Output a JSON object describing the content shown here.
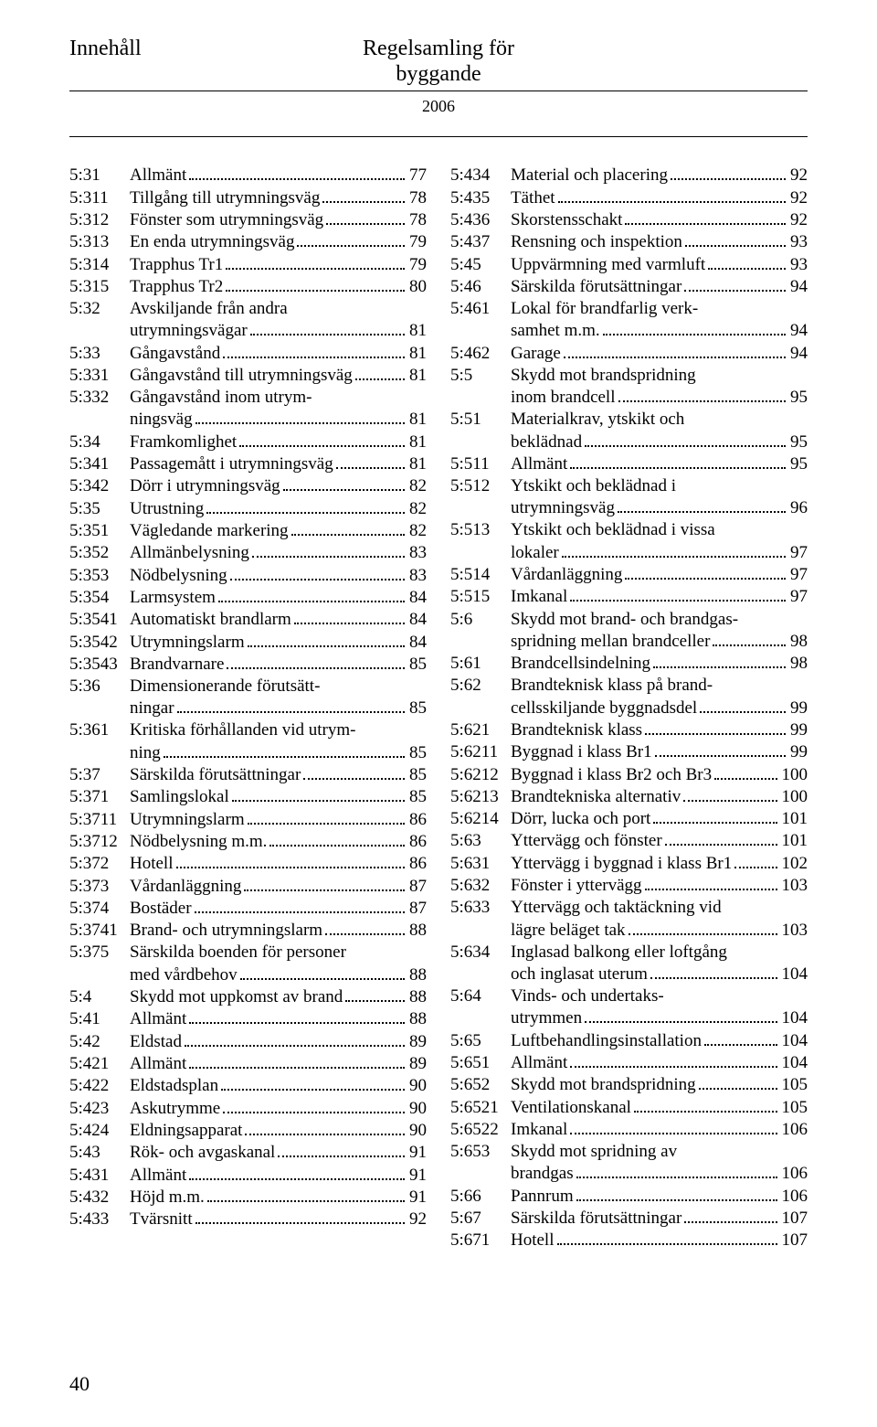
{
  "header": {
    "left": "Innehåll",
    "title_line1": "Regelsamling för",
    "title_line2": "byggande",
    "year": "2006"
  },
  "page_number": "40",
  "left": [
    {
      "code": "5:31",
      "label": "Allmänt",
      "page": "77"
    },
    {
      "code": "5:311",
      "label": "Tillgång till utrymningsväg",
      "page": "78"
    },
    {
      "code": "5:312",
      "label": "Fönster som utrymningsväg",
      "page": "78"
    },
    {
      "code": "5:313",
      "label": "En enda utrymningsväg",
      "page": "79"
    },
    {
      "code": "5:314",
      "label": "Trapphus Tr1",
      "page": "79"
    },
    {
      "code": "5:315",
      "label": "Trapphus Tr2",
      "page": "80"
    },
    {
      "code": "5:32",
      "label": "Avskiljande från andra",
      "cont": "utrymningsvägar",
      "page": "81"
    },
    {
      "code": "5:33",
      "label": "Gångavstånd",
      "page": "81"
    },
    {
      "code": "5:331",
      "label": "Gångavstånd till utrymningsväg",
      "page": "81"
    },
    {
      "code": "5:332",
      "label": "Gångavstånd inom utrym-",
      "cont": "ningsväg",
      "page": "81"
    },
    {
      "code": "5:34",
      "label": "Framkomlighet",
      "page": "81"
    },
    {
      "code": "5:341",
      "label": "Passagemått i utrymningsväg",
      "page": "81"
    },
    {
      "code": "5:342",
      "label": "Dörr i utrymningsväg",
      "page": "82"
    },
    {
      "code": "5:35",
      "label": "Utrustning",
      "page": "82"
    },
    {
      "code": "5:351",
      "label": "Vägledande markering",
      "page": "82"
    },
    {
      "code": "5:352",
      "label": "Allmänbelysning",
      "page": "83"
    },
    {
      "code": "5:353",
      "label": "Nödbelysning",
      "page": "83"
    },
    {
      "code": "5:354",
      "label": "Larmsystem",
      "page": "84"
    },
    {
      "code": "5:3541",
      "label": "Automatiskt brandlarm",
      "page": "84"
    },
    {
      "code": "5:3542",
      "label": "Utrymningslarm",
      "page": "84"
    },
    {
      "code": "5:3543",
      "label": "Brandvarnare",
      "page": "85"
    },
    {
      "code": "5:36",
      "label": "Dimensionerande förutsätt-",
      "cont": "ningar",
      "page": "85"
    },
    {
      "code": "5:361",
      "label": "Kritiska förhållanden vid utrym-",
      "cont": "ning",
      "page": "85"
    },
    {
      "code": "5:37",
      "label": "Särskilda förutsättningar",
      "page": "85"
    },
    {
      "code": "5:371",
      "label": "Samlingslokal",
      "page": "85"
    },
    {
      "code": "5:3711",
      "label": "Utrymningslarm",
      "page": "86"
    },
    {
      "code": "5:3712",
      "label": "Nödbelysning m.m.",
      "page": "86"
    },
    {
      "code": "5:372",
      "label": "Hotell",
      "page": "86"
    },
    {
      "code": "5:373",
      "label": "Vårdanläggning",
      "page": "87"
    },
    {
      "code": "5:374",
      "label": "Bostäder",
      "page": "87"
    },
    {
      "code": "5:3741",
      "label": "Brand- och utrymningslarm",
      "page": "88"
    },
    {
      "code": "5:375",
      "label": "Särskilda boenden för personer",
      "cont": "med vårdbehov",
      "page": "88"
    },
    {
      "code": "5:4",
      "label": "Skydd mot uppkomst av brand",
      "page": "88"
    },
    {
      "code": "5:41",
      "label": "Allmänt",
      "page": "88"
    },
    {
      "code": "5:42",
      "label": "Eldstad",
      "page": "89"
    },
    {
      "code": "5:421",
      "label": "Allmänt",
      "page": "89"
    },
    {
      "code": "5:422",
      "label": "Eldstadsplan",
      "page": "90"
    },
    {
      "code": "5:423",
      "label": "Askutrymme",
      "page": "90"
    },
    {
      "code": "5:424",
      "label": "Eldningsapparat",
      "page": "90"
    },
    {
      "code": "5:43",
      "label": "Rök- och avgaskanal",
      "page": "91"
    },
    {
      "code": "5:431",
      "label": "Allmänt",
      "page": "91"
    },
    {
      "code": "5:432",
      "label": "Höjd m.m.",
      "page": "91"
    },
    {
      "code": "5:433",
      "label": "Tvärsnitt",
      "page": "92"
    }
  ],
  "right": [
    {
      "code": "5:434",
      "label": "Material och placering",
      "page": "92"
    },
    {
      "code": "5:435",
      "label": "Täthet",
      "page": "92"
    },
    {
      "code": "5:436",
      "label": "Skorstensschakt",
      "page": "92"
    },
    {
      "code": "5:437",
      "label": "Rensning och inspektion",
      "page": "93"
    },
    {
      "code": "5:45",
      "label": "Uppvärmning med varmluft",
      "page": "93"
    },
    {
      "code": "5:46",
      "label": "Särskilda förutsättningar",
      "page": "94"
    },
    {
      "code": "5:461",
      "label": "Lokal för brandfarlig verk-",
      "cont": "samhet m.m.",
      "page": "94"
    },
    {
      "code": "5:462",
      "label": "Garage",
      "page": "94"
    },
    {
      "code": "5:5",
      "label": "Skydd mot brandspridning",
      "cont": "inom brandcell",
      "page": "95"
    },
    {
      "code": "5:51",
      "label": "Materialkrav, ytskikt och",
      "cont": "beklädnad",
      "page": "95"
    },
    {
      "code": "5:511",
      "label": "Allmänt",
      "page": "95"
    },
    {
      "code": "5:512",
      "label": "Ytskikt och beklädnad i",
      "cont": "utrymningsväg",
      "page": "96"
    },
    {
      "code": "5:513",
      "label": "Ytskikt och beklädnad i vissa",
      "cont": "lokaler",
      "page": "97"
    },
    {
      "code": "5:514",
      "label": "Vårdanläggning",
      "page": "97"
    },
    {
      "code": "5:515",
      "label": "Imkanal",
      "page": "97"
    },
    {
      "code": "5:6",
      "label": "Skydd mot brand- och brandgas-",
      "cont": "spridning mellan brandceller",
      "page": "98"
    },
    {
      "code": "5:61",
      "label": "Brandcellsindelning",
      "page": "98"
    },
    {
      "code": "5:62",
      "label": "Brandteknisk klass på brand-",
      "cont": "cellsskiljande byggnadsdel",
      "page": "99"
    },
    {
      "code": "5:621",
      "label": "Brandteknisk klass",
      "page": "99"
    },
    {
      "code": "5:6211",
      "label": "Byggnad i klass Br1",
      "page": "99"
    },
    {
      "code": "5:6212",
      "label": "Byggnad i klass Br2 och Br3",
      "page": "100"
    },
    {
      "code": "5:6213",
      "label": "Brandtekniska alternativ",
      "page": "100"
    },
    {
      "code": "5:6214",
      "label": "Dörr, lucka och port",
      "page": "101"
    },
    {
      "code": "5:63",
      "label": "Yttervägg och fönster",
      "page": "101"
    },
    {
      "code": "5:631",
      "label": "Yttervägg i byggnad i klass Br1",
      "page": "102"
    },
    {
      "code": "5:632",
      "label": "Fönster i yttervägg",
      "page": "103"
    },
    {
      "code": "5:633",
      "label": "Yttervägg och taktäckning vid",
      "cont": "lägre beläget tak",
      "page": "103"
    },
    {
      "code": "5:634",
      "label": "Inglasad balkong eller loftgång",
      "cont": "och inglasat uterum",
      "page": "104"
    },
    {
      "code": "5:64",
      "label": "Vinds- och undertaks-",
      "cont": "utrymmen",
      "page": "104"
    },
    {
      "code": "5:65",
      "label": "Luftbehandlingsinstallation",
      "page": "104"
    },
    {
      "code": "5:651",
      "label": "Allmänt",
      "page": "104"
    },
    {
      "code": "5:652",
      "label": "Skydd mot brandspridning",
      "page": "105"
    },
    {
      "code": "5:6521",
      "label": "Ventilationskanal",
      "page": "105"
    },
    {
      "code": "5:6522",
      "label": "Imkanal",
      "page": "106"
    },
    {
      "code": "5:653",
      "label": "Skydd mot spridning av",
      "cont": "brandgas",
      "page": "106"
    },
    {
      "code": "5:66",
      "label": "Pannrum",
      "page": "106"
    },
    {
      "code": "5:67",
      "label": "Särskilda förutsättningar",
      "page": "107"
    },
    {
      "code": "5:671",
      "label": "Hotell",
      "page": "107"
    }
  ]
}
